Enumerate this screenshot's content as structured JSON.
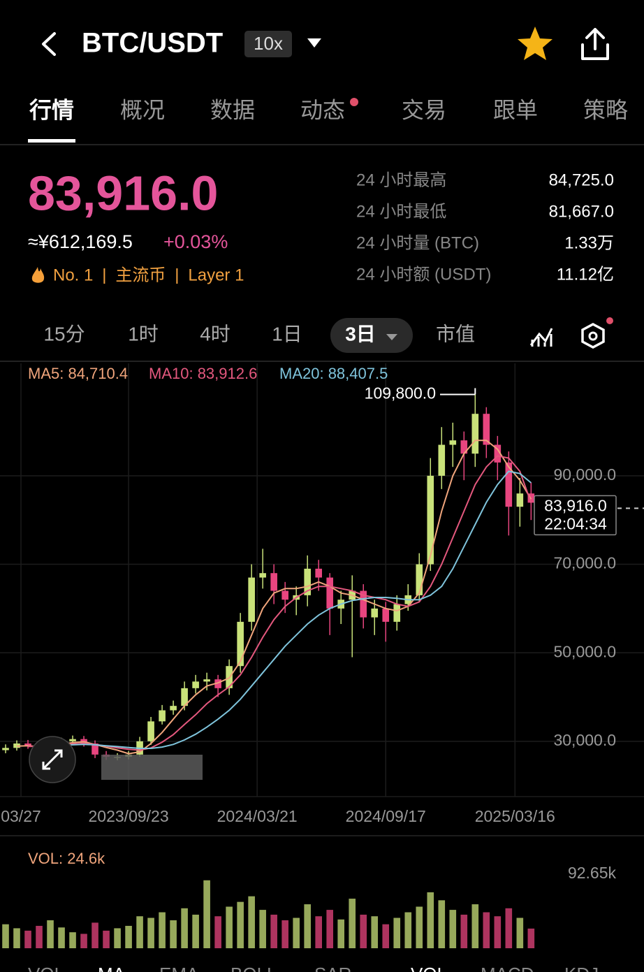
{
  "header": {
    "title": "BTC/USDT",
    "leverage": "10x"
  },
  "tabs": [
    "行情",
    "概况",
    "数据",
    "动态",
    "交易",
    "跟单",
    "策略"
  ],
  "price": {
    "last": "83,916.0",
    "cny": "≈¥612,169.5",
    "change": "+0.03%"
  },
  "tags": [
    "No. 1",
    "主流币",
    "Layer 1"
  ],
  "stats": [
    {
      "label": "24 小时最高",
      "value": "84,725.0"
    },
    {
      "label": "24 小时最低",
      "value": "81,667.0"
    },
    {
      "label": "24 小时量 (BTC)",
      "value": "1.33万"
    },
    {
      "label": "24 小时额 (USDT)",
      "value": "11.12亿"
    }
  ],
  "timeframes": [
    "15分",
    "1时",
    "4时",
    "1日",
    "3日",
    "市值"
  ],
  "indicator_tabs": [
    "VOL",
    "MA",
    "EMA",
    "BOLL",
    "SAR",
    "VOL",
    "MACD",
    "KDJ"
  ],
  "chart_data": [
    {
      "type": "candlestick",
      "up_color": "#c9e27a",
      "down_color": "#e8457f",
      "open": [
        28000,
        28500,
        29500,
        29000,
        28000,
        29500,
        30000,
        30500,
        29500,
        27000,
        26500,
        26500,
        27000,
        30000,
        34500,
        37000,
        38000,
        42000,
        43500,
        44000,
        42000,
        47000,
        57000,
        67000,
        68000,
        64000,
        62000,
        63000,
        69000,
        67000,
        60000,
        62000,
        64000,
        58000,
        60000,
        57000,
        61000,
        63000,
        70000,
        90000,
        97000,
        98000,
        95000,
        104000,
        97000,
        93000,
        83000,
        86000
      ],
      "high": [
        29300,
        30200,
        30300,
        29600,
        30200,
        30800,
        31300,
        31200,
        30200,
        27800,
        27300,
        27800,
        31000,
        35500,
        38200,
        39200,
        43500,
        45000,
        45500,
        45000,
        48500,
        59000,
        70000,
        73500,
        70000,
        66000,
        65000,
        72000,
        71000,
        68000,
        64000,
        67500,
        65500,
        62000,
        61500,
        63000,
        65500,
        72500,
        94000,
        101000,
        102000,
        100000,
        109800,
        105500,
        99000,
        95500,
        89500,
        88500
      ],
      "low": [
        27300,
        27900,
        28300,
        27200,
        27300,
        28900,
        29200,
        28800,
        26200,
        25800,
        25700,
        25900,
        26500,
        29200,
        33800,
        36000,
        37000,
        40800,
        41500,
        40000,
        40500,
        45500,
        55000,
        64500,
        61000,
        59000,
        58500,
        60500,
        64000,
        54000,
        56500,
        49000,
        55500,
        54000,
        52500,
        55000,
        59500,
        61500,
        68500,
        87000,
        92000,
        89000,
        92000,
        94000,
        89000,
        76500,
        78500,
        80000
      ],
      "close": [
        28500,
        29500,
        29000,
        28000,
        29500,
        30000,
        30500,
        29500,
        27000,
        26500,
        26500,
        27000,
        30000,
        34500,
        37000,
        38000,
        42000,
        43500,
        44000,
        42000,
        47000,
        57000,
        67000,
        68000,
        64000,
        62000,
        63000,
        69000,
        67000,
        60000,
        62000,
        64000,
        58000,
        60000,
        57000,
        61000,
        63000,
        70000,
        90000,
        97000,
        98000,
        95000,
        104000,
        97000,
        93000,
        83000,
        86000,
        83916
      ],
      "series": [
        {
          "name": "MA5: 84,710.4",
          "color": "#f0a57c",
          "values": [
            null,
            28900,
            29000,
            28800,
            29000,
            29300,
            29700,
            29900,
            29300,
            28600,
            28000,
            27200,
            27600,
            29500,
            32000,
            35000,
            38000,
            40500,
            42500,
            43200,
            44300,
            48000,
            54000,
            60000,
            63500,
            64500,
            64500,
            65000,
            66000,
            65000,
            63500,
            63000,
            62000,
            61000,
            60000,
            59500,
            60500,
            63500,
            72000,
            82000,
            90000,
            95000,
            98000,
            98000,
            96000,
            92000,
            89000,
            84710.4
          ]
        },
        {
          "name": "MA10: 83,912.6",
          "color": "#e4587e",
          "values": [
            null,
            null,
            28800,
            28900,
            29000,
            29200,
            29400,
            29500,
            29300,
            28900,
            28500,
            28200,
            28000,
            28500,
            29800,
            31500,
            33800,
            36000,
            38500,
            40500,
            42300,
            45000,
            49000,
            53500,
            57500,
            60500,
            62500,
            64000,
            65000,
            65000,
            64500,
            64000,
            63000,
            62500,
            62000,
            61000,
            60500,
            61500,
            65000,
            70000,
            76000,
            82000,
            88000,
            92000,
            94500,
            94000,
            91000,
            83912.6
          ]
        },
        {
          "name": "MA20: 88,407.5",
          "color": "#7fc4dc",
          "values": [
            null,
            null,
            null,
            null,
            29000,
            29100,
            29200,
            29300,
            29200,
            29000,
            28800,
            28600,
            28400,
            28400,
            28700,
            29300,
            30300,
            31600,
            33200,
            35000,
            37000,
            39500,
            42500,
            45500,
            48500,
            51500,
            54000,
            56500,
            58500,
            60000,
            61000,
            61800,
            62200,
            62500,
            62500,
            62300,
            62000,
            62000,
            63000,
            65000,
            69000,
            74000,
            79000,
            84000,
            88000,
            91000,
            90500,
            88407.5
          ]
        }
      ],
      "ylim": [
        17500,
        115400
      ],
      "yticks": [
        {
          "value": 30000,
          "label": "30,000.0"
        },
        {
          "value": 50000,
          "label": "50,000.0"
        },
        {
          "value": 70000,
          "label": "70,000.0"
        },
        {
          "value": 90000,
          "label": "90,000.0"
        }
      ],
      "xlim": [
        -0.5,
        57.1
      ],
      "xticks": [
        {
          "value": 1.375,
          "label": "03/27"
        },
        {
          "value": 11,
          "label": "2023/09/23"
        },
        {
          "value": 22.5,
          "label": "2024/03/21"
        },
        {
          "value": 34,
          "label": "2024/09/17"
        },
        {
          "value": 45.56,
          "label": "2025/03/16"
        }
      ],
      "grid": true,
      "max_label": "109,800.0",
      "last_label": {
        "price": "83,916.0",
        "time": "22:04:34"
      }
    },
    {
      "type": "bar",
      "series": [
        {
          "name": "VOL: 24.6k",
          "values": [
            30000,
            25000,
            22000,
            28000,
            35000,
            26000,
            20000,
            18000,
            32000,
            22000,
            25000,
            28000,
            40000,
            38000,
            45000,
            35000,
            50000,
            42000,
            85000,
            40000,
            52000,
            58000,
            65000,
            48000,
            42000,
            35000,
            38000,
            55000,
            40000,
            48000,
            36000,
            62000,
            42000,
            40000,
            30000,
            38000,
            45000,
            52000,
            70000,
            60000,
            48000,
            42000,
            55000,
            45000,
            40000,
            50000,
            38000,
            24600
          ]
        }
      ],
      "ylim": [
        0,
        92650
      ],
      "yticks": [
        {
          "value": 92650,
          "label": "92.65k"
        }
      ]
    }
  ]
}
